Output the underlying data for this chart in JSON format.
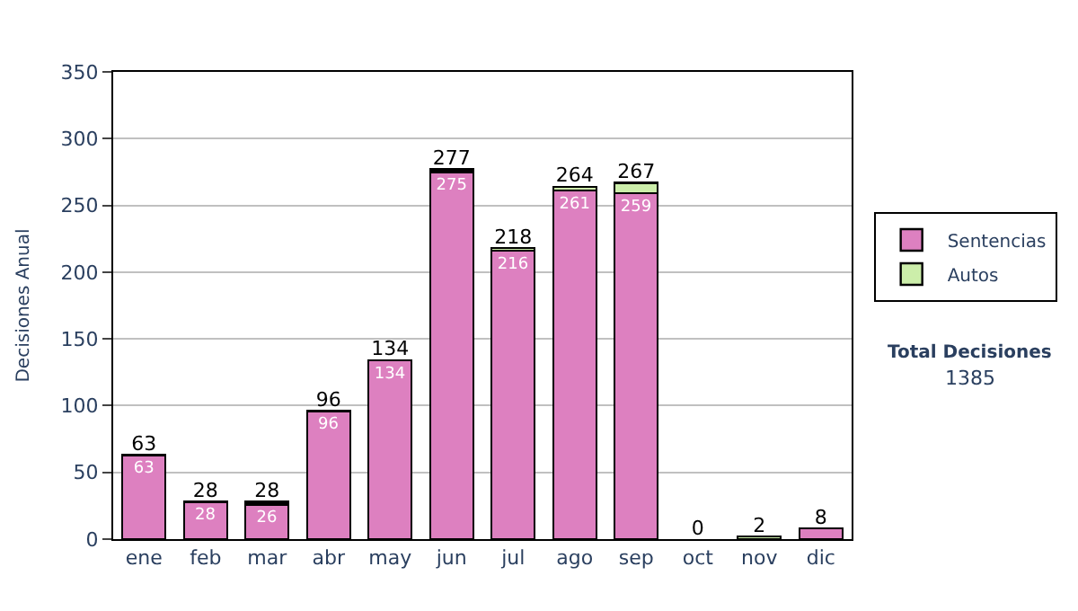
{
  "chart_data": {
    "type": "bar",
    "stacked": true,
    "ylabel": "Decisiones Anual",
    "categories": [
      "ene",
      "feb",
      "mar",
      "abr",
      "may",
      "jun",
      "jul",
      "ago",
      "sep",
      "oct",
      "nov",
      "dic"
    ],
    "series": [
      {
        "name": "Sentencias",
        "color": "#dd80c0",
        "values": [
          63,
          28,
          26,
          96,
          134,
          275,
          216,
          261,
          259,
          null,
          null,
          8
        ],
        "value_labels": [
          "63",
          "28",
          "26",
          "96",
          "134",
          "275",
          "216",
          "261",
          "259",
          null,
          null,
          null
        ]
      },
      {
        "name": "Autos",
        "color": "#cceeaa",
        "values": [
          null,
          null,
          2,
          null,
          null,
          2,
          2,
          3,
          8,
          null,
          2,
          null
        ]
      }
    ],
    "totals": [
      "63",
      "28",
      "28",
      "96",
      "134",
      "277",
      "218",
      "264",
      "267",
      "0",
      "2",
      "8"
    ],
    "ylim": [
      0,
      350
    ],
    "yticks": [
      0,
      50,
      100,
      150,
      200,
      250,
      300,
      350
    ],
    "grid": "y",
    "legend": "right",
    "annotations": [
      "Total Decisiones",
      "1385"
    ]
  }
}
